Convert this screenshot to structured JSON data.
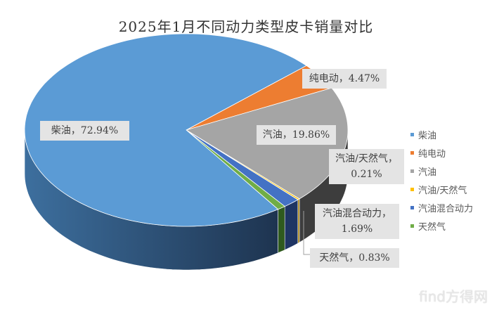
{
  "chart_data": {
    "type": "pie",
    "title": "2025年1月不同动力类型皮卡销量对比",
    "categories": [
      "柴油",
      "纯电动",
      "汽油",
      "汽油/天然气",
      "汽油混合动力",
      "天然气"
    ],
    "values": [
      72.94,
      4.47,
      19.86,
      0.21,
      1.69,
      0.83
    ],
    "unit": "%",
    "data_labels": [
      "柴油，72.94%",
      "纯电动，4.47%",
      "汽油，19.86%",
      "汽油/天然气，0.21%",
      "汽油混合动力，1.69%",
      "天然气，0.83%"
    ],
    "colors": [
      "#5B9BD5",
      "#ED7D31",
      "#A5A5A5",
      "#FFC000",
      "#4472C4",
      "#70AD47"
    ],
    "side_colors": [
      "#2f5f8a",
      "#9c4f1c",
      "#3d3d3d",
      "#a67d00",
      "#1f3563",
      "#2f5a1e"
    ],
    "legend_position": "right",
    "style": "3d"
  },
  "watermark": "find方得网"
}
